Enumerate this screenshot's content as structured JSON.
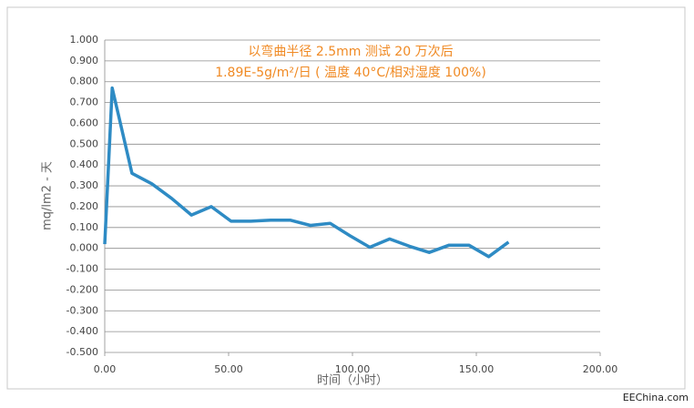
{
  "chart_data": {
    "type": "line",
    "title": "以弯曲半径 2.5mm 测试 20 万次后",
    "subtitle": "1.89E-5g/m²/日 ( 温度 40°C/相对湿度 100%)",
    "x_label": "时间（小时）",
    "y_label": "mq/lm2 - 天",
    "watermark": "EEChina.com",
    "x": [
      0,
      3,
      11,
      19,
      27,
      35,
      43,
      51,
      59,
      67,
      75,
      83,
      91,
      99,
      107,
      115,
      123,
      131,
      139,
      147,
      155,
      163
    ],
    "values": [
      0.02,
      0.77,
      0.36,
      0.31,
      0.24,
      0.16,
      0.2,
      0.13,
      0.13,
      0.135,
      0.135,
      0.11,
      0.12,
      0.06,
      0.005,
      0.045,
      0.01,
      -0.02,
      0.015,
      0.015,
      -0.04,
      0.03
    ],
    "color": "#2e8bc4",
    "xlim": [
      0,
      200
    ],
    "xticks": [
      {
        "value": 0,
        "label": "0.00"
      },
      {
        "value": 50,
        "label": "50.00"
      },
      {
        "value": 100,
        "label": "100.00"
      },
      {
        "value": 150,
        "label": "150.00"
      },
      {
        "value": 200,
        "label": "200.00"
      }
    ],
    "ylim": [
      -0.5,
      1
    ],
    "yticks": [
      {
        "value": 1,
        "label": "1.000"
      },
      {
        "value": 0.9,
        "label": "0.900"
      },
      {
        "value": 0.8,
        "label": "0.800"
      },
      {
        "value": 0.7,
        "label": "0.700"
      },
      {
        "value": 0.6,
        "label": "0.600"
      },
      {
        "value": 0.5,
        "label": "0.500"
      },
      {
        "value": 0.4,
        "label": "0.400"
      },
      {
        "value": 0.3,
        "label": "0.300"
      },
      {
        "value": 0.2,
        "label": "0.200"
      },
      {
        "value": 0.1,
        "label": "0.100"
      },
      {
        "value": 0,
        "label": "0.000"
      },
      {
        "value": -0.1,
        "label": "-0.100"
      },
      {
        "value": -0.2,
        "label": "-0.200"
      },
      {
        "value": -0.3,
        "label": "-0.300"
      },
      {
        "value": -0.4,
        "label": "-0.400"
      },
      {
        "value": -0.5,
        "label": "-0.500"
      }
    ],
    "grid": true
  }
}
